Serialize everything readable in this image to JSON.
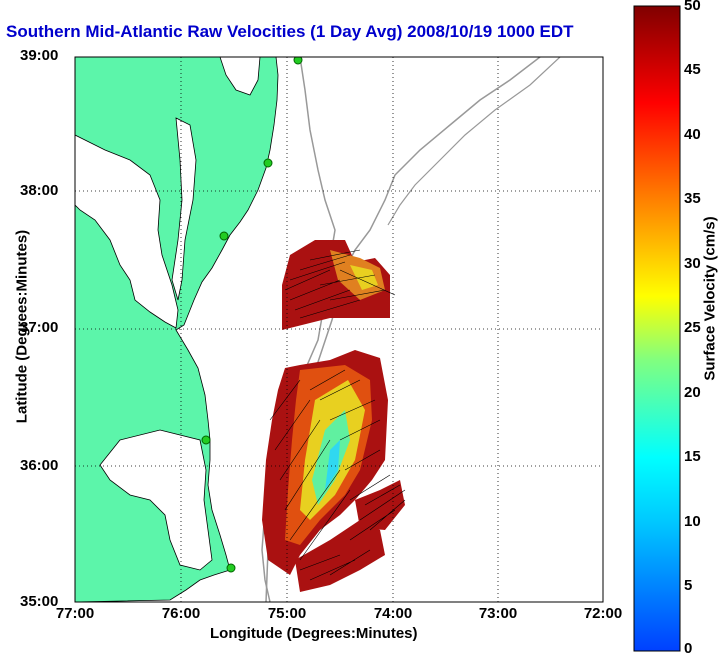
{
  "title": "Southern Mid-Atlantic Raw Velocities (1 Day Avg) 2008/10/19 1000 EDT",
  "xlabel": "Longitude (Degrees:Minutes)",
  "ylabel": "Latitude (Degrees:Minutes)",
  "lat_ticks": [
    "39:00",
    "38:00",
    "37:00",
    "36:00",
    "35:00"
  ],
  "lon_ticks": [
    "77:00",
    "76:00",
    "75:00",
    "74:00",
    "73:00",
    "72:00"
  ],
  "colorbar": {
    "label": "Surface Velocity (cm/s)",
    "ticks": [
      "50",
      "45",
      "40",
      "35",
      "30",
      "25",
      "20",
      "15",
      "10",
      "5",
      "0"
    ],
    "min": 0,
    "max": 50
  },
  "colors": {
    "land": "#5cf5aa",
    "ocean": "#ffffff",
    "bathymetry": "#999999",
    "station": "#22cc22",
    "title": "#0000cc"
  },
  "map": {
    "lon_range": [
      -77,
      -72
    ],
    "lat_range": [
      35,
      39
    ],
    "grid": "dotted"
  }
}
